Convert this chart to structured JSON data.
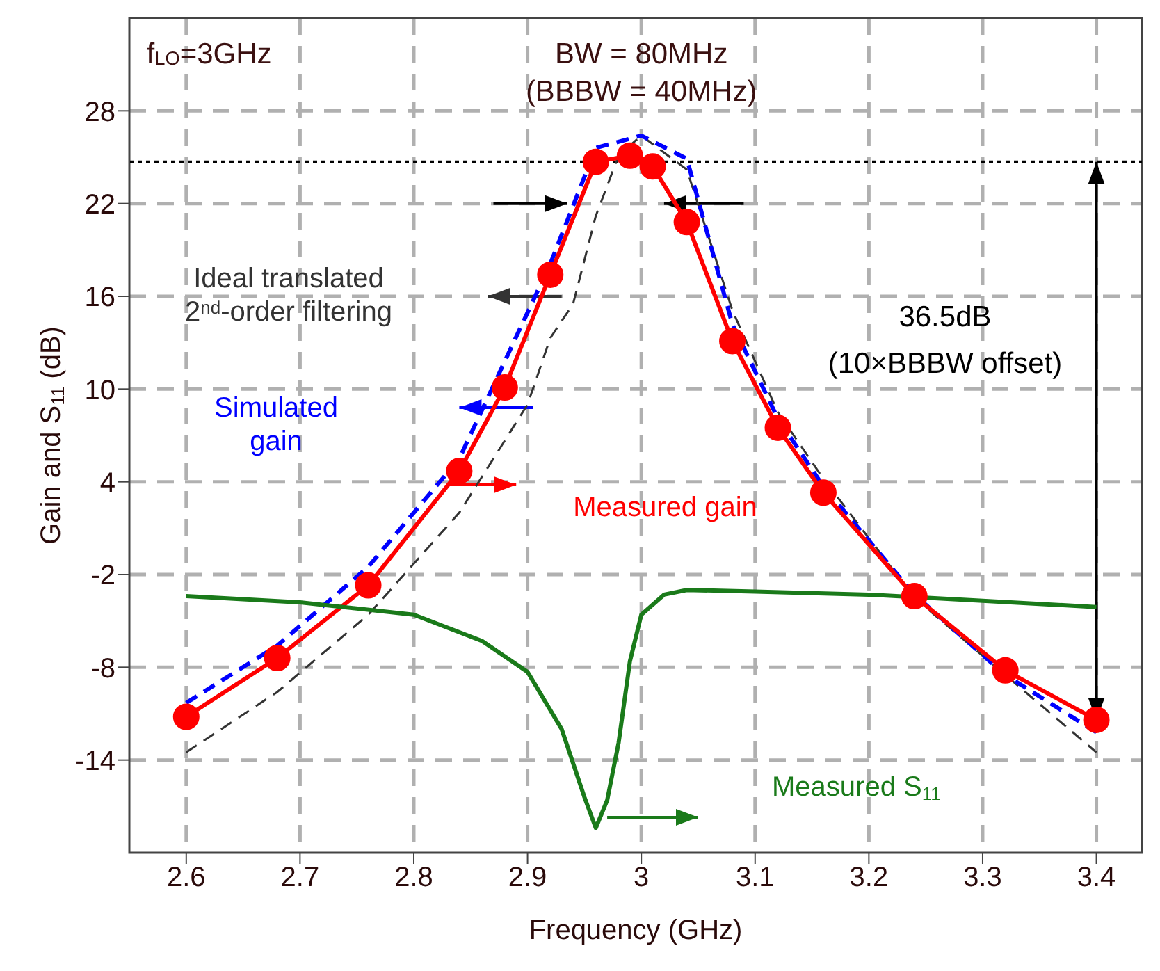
{
  "chart_data": {
    "type": "line",
    "xlabel": "Frequency (GHz)",
    "ylabel": "Gain and S$_{11}$ (dB)",
    "xlim": [
      2.55,
      3.44
    ],
    "xticks": [
      2.6,
      2.7,
      2.8,
      2.9,
      3,
      3.1,
      3.2,
      3.3,
      3.4
    ],
    "ylim": [
      -20,
      34
    ],
    "yticks": [
      -14,
      -8,
      -2,
      4,
      10,
      16,
      22,
      28
    ],
    "grid": true,
    "series": [
      {
        "name": "Ideal translated 2$^{nd}$-order filtering",
        "color": "#333333",
        "line_style": "dashed",
        "marker": "none",
        "x": [
          2.6,
          2.68,
          2.76,
          2.84,
          2.9,
          2.92,
          2.94,
          2.96,
          2.98,
          3,
          3.04,
          3.08,
          3.12,
          3.16,
          3.24,
          3.32,
          3.4
        ],
        "values": [
          -13.5,
          -9.6,
          -4.6,
          2,
          9,
          13.3,
          15.5,
          21.2,
          25.1,
          26.4,
          24.2,
          15.1,
          8.5,
          4.2,
          -3.5,
          -8.5,
          -13.5
        ]
      },
      {
        "name": "Simulated gain",
        "color": "#0000ff",
        "line_style": "dashed",
        "marker": "none",
        "x": [
          2.6,
          2.68,
          2.76,
          2.84,
          2.92,
          2.96,
          3,
          3.04,
          3.08,
          3.12,
          3.16,
          3.24,
          3.32,
          3.4
        ],
        "values": [
          -10.3,
          -6.6,
          -1.5,
          5.5,
          18.1,
          25.6,
          26.4,
          24.9,
          14.2,
          8.1,
          3.7,
          -3.3,
          -8.5,
          -12.2
        ]
      },
      {
        "name": "Measured gain",
        "color": "#ff0000",
        "line_style": "solid",
        "marker": "circle",
        "x": [
          2.6,
          2.68,
          2.76,
          2.84,
          2.88,
          2.92,
          2.96,
          2.99,
          3.01,
          3.04,
          3.08,
          3.12,
          3.16,
          3.24,
          3.32,
          3.4
        ],
        "values": [
          -11.2,
          -7.4,
          -2.7,
          4.7,
          10.1,
          17.4,
          24.7,
          25.1,
          24.4,
          20.8,
          13.1,
          7.5,
          3.3,
          -3.4,
          -8.2,
          -11.4
        ]
      },
      {
        "name": "Measured S$_{11}$",
        "color": "#1a7a1a",
        "line_style": "solid",
        "marker": "none",
        "x": [
          2.6,
          2.7,
          2.8,
          2.86,
          2.9,
          2.93,
          2.95,
          2.96,
          2.97,
          2.98,
          2.99,
          3,
          3.02,
          3.04,
          3.1,
          3.2,
          3.3,
          3.4
        ],
        "values": [
          -3.4,
          -3.8,
          -4.6,
          -6.3,
          -8.3,
          -12,
          -16.4,
          -18.4,
          -16.6,
          -12.9,
          -7.6,
          -4.6,
          -3.3,
          -3,
          -3.1,
          -3.3,
          -3.7,
          -4.1
        ]
      }
    ],
    "ref_lines": [
      {
        "axis": "y",
        "value": 24.7,
        "color": "#000000",
        "line_style": "dotted"
      }
    ],
    "annotations": [
      "f$_{LO}$=3GHz",
      "BW = 80MHz",
      "(BBBW = 40MHz)",
      "36.5dB",
      "(10×BBBW offset)"
    ]
  }
}
